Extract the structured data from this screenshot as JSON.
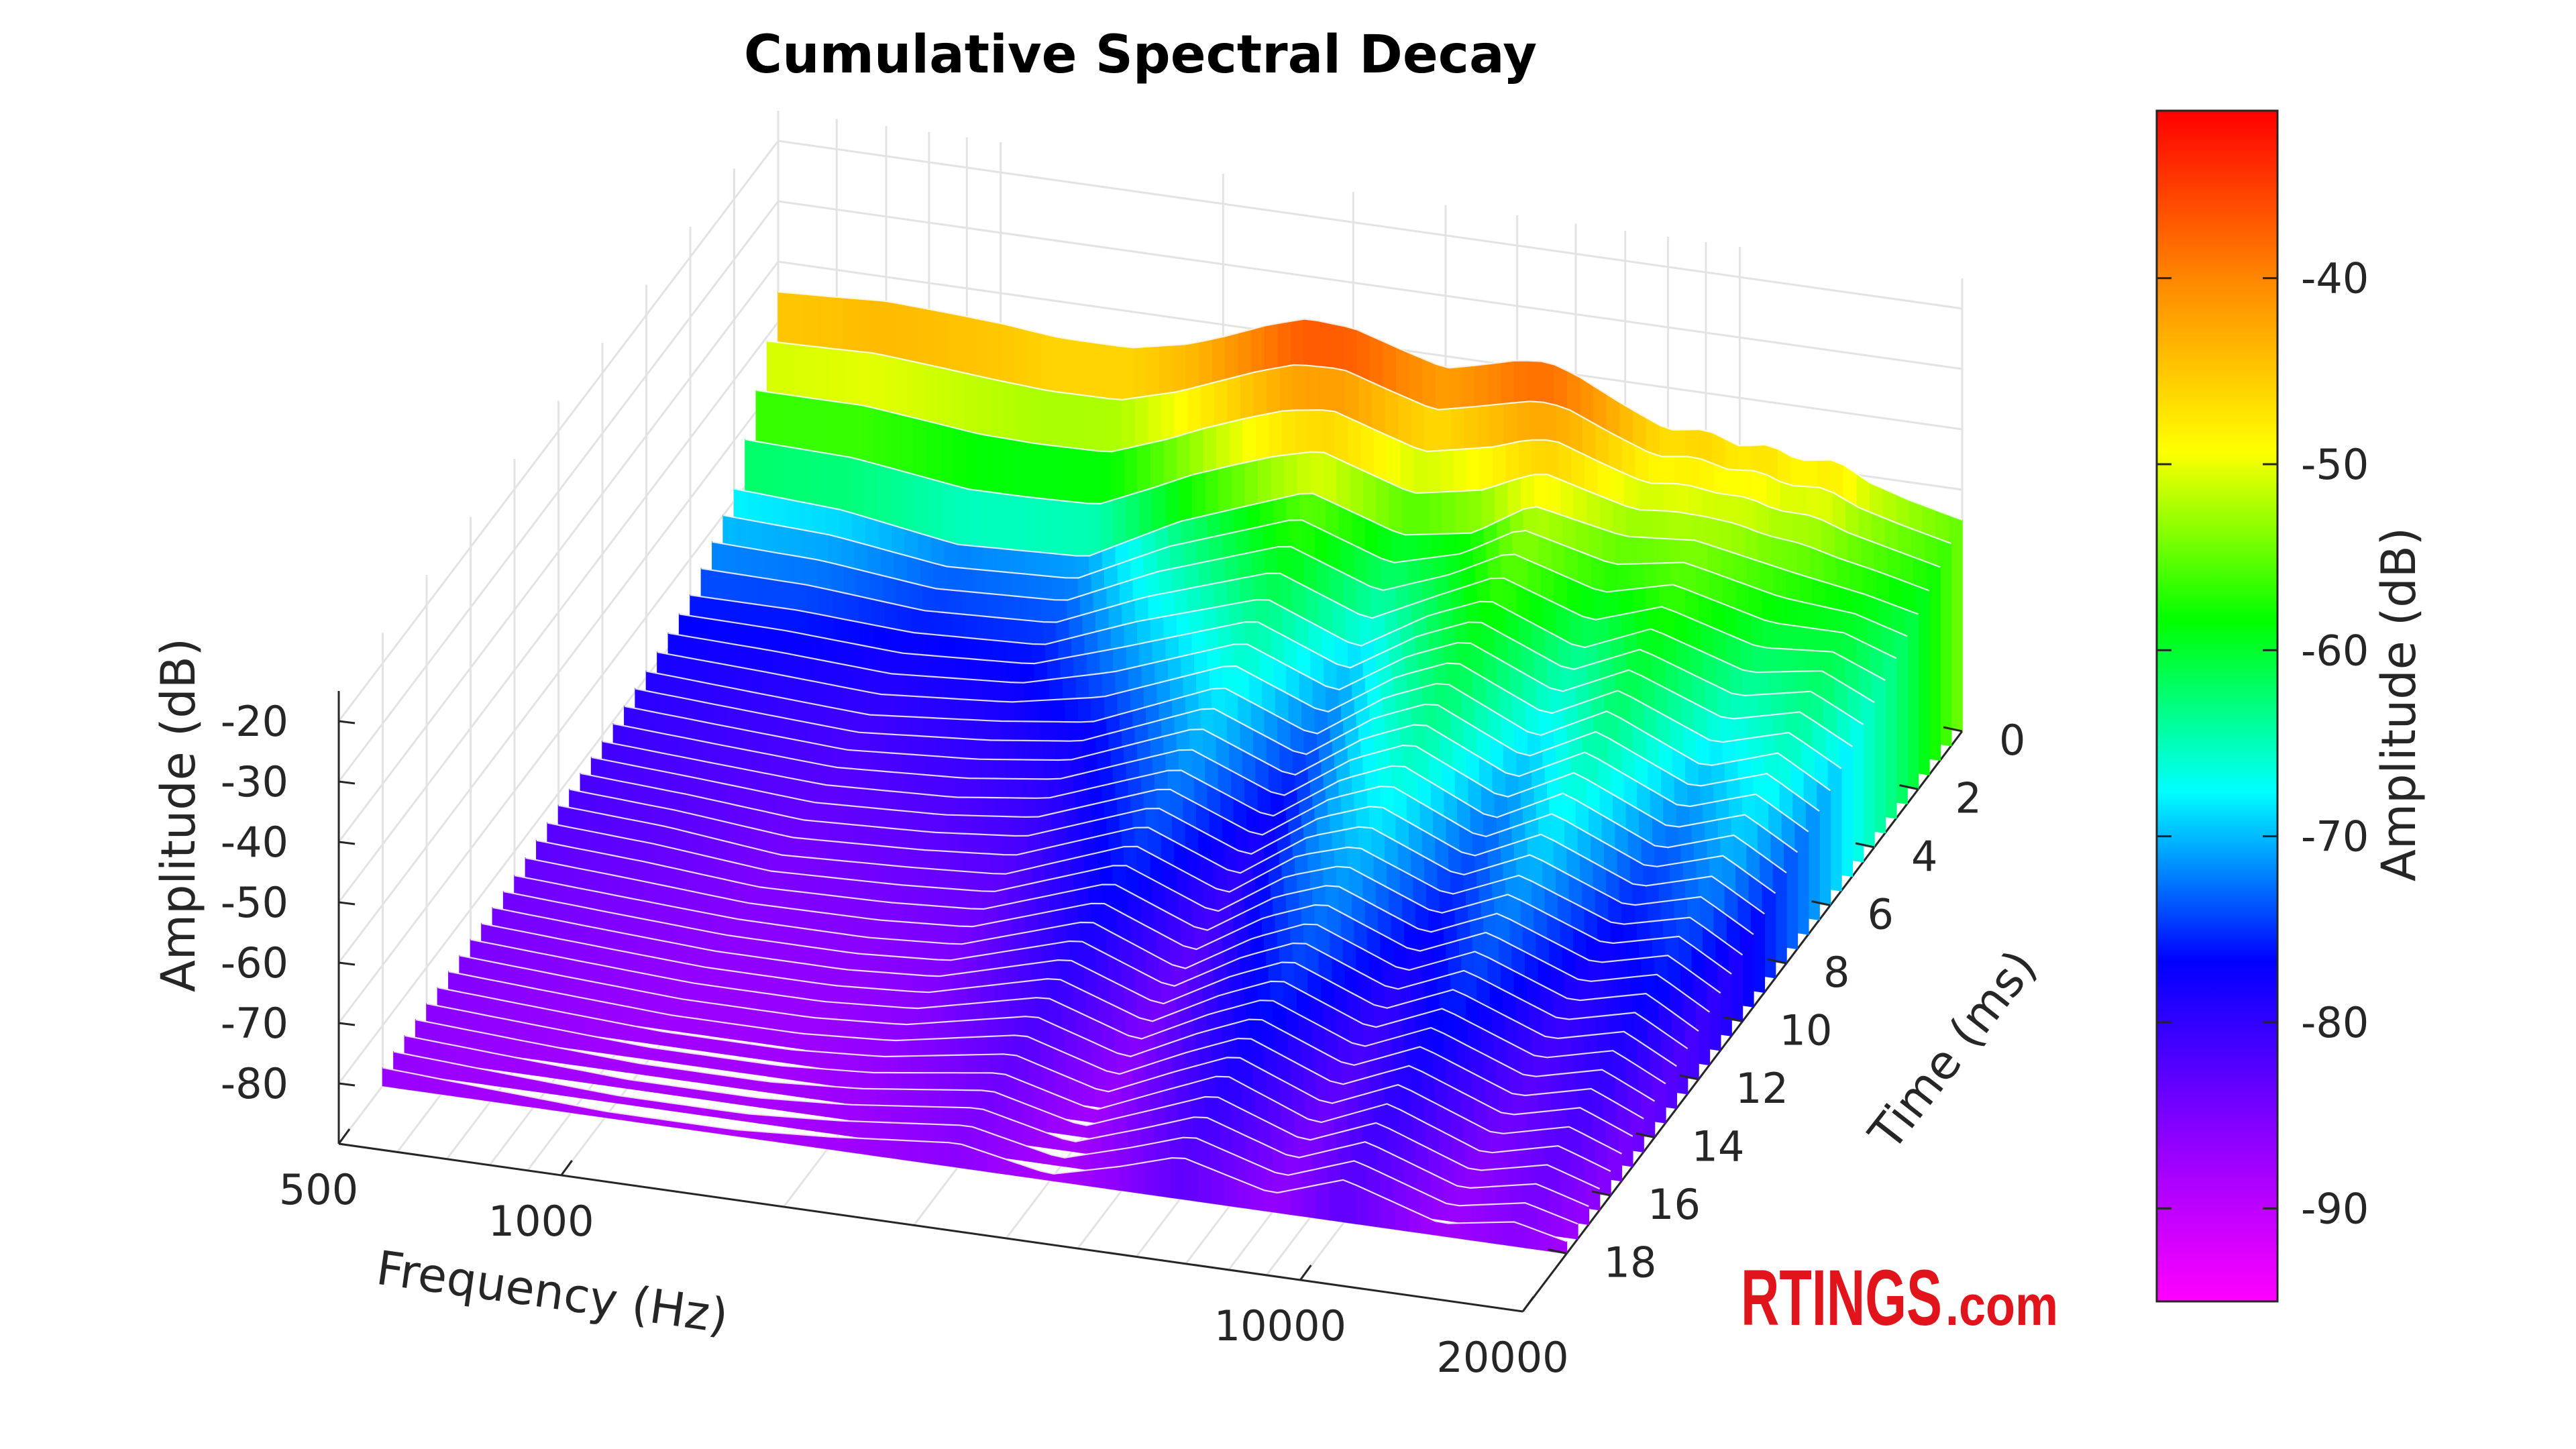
{
  "chart_data": {
    "type": "surface-3d",
    "title": "Cumulative Spectral Decay",
    "frequency_axis": {
      "label": "Frequency (Hz)",
      "scale": "log",
      "range": [
        500,
        20000
      ],
      "ticks": [
        "500",
        "1000",
        "10000",
        "20000"
      ]
    },
    "time_axis": {
      "label": "Time (ms)",
      "range": [
        0,
        20
      ],
      "ticks": [
        "0",
        "2",
        "4",
        "6",
        "8",
        "10",
        "12",
        "14",
        "16",
        "18"
      ]
    },
    "amplitude_axis": {
      "label": "Amplitude (dB)",
      "range": [
        -90,
        -15
      ],
      "ticks": [
        "-20",
        "-30",
        "-40",
        "-50",
        "-60",
        "-70",
        "-80"
      ]
    },
    "colorbar": {
      "label": "Amplitude (dB)",
      "range": [
        -95,
        -31
      ],
      "ticks": [
        "-40",
        "-50",
        "-60",
        "-70",
        "-80",
        "-90"
      ],
      "colormap": [
        "#ff00ff",
        "#8800ff",
        "#0000ff",
        "#00ffff",
        "#00ff00",
        "#ffff00",
        "#ff8800",
        "#ff0000"
      ]
    },
    "grid": true,
    "series": [
      {
        "time_ms": 0,
        "frequency_hz": [
          500,
          600,
          700,
          850,
          1000,
          1200,
          1500,
          1800,
          2000,
          2300,
          2600,
          3000,
          3500,
          4000,
          4500,
          5000,
          5500,
          6000,
          7000,
          8000,
          9000,
          10000,
          11000,
          12000,
          13500,
          15000,
          17000,
          20000
        ],
        "amplitude_db": [
          -45,
          -44.5,
          -44,
          -44.5,
          -45,
          -46,
          -46,
          -44,
          -42,
          -39,
          -37,
          -37.5,
          -40,
          -42,
          -40.5,
          -39,
          -38.5,
          -40,
          -44,
          -47,
          -46,
          -48,
          -47,
          -49,
          -48,
          -51,
          -53,
          -55
        ]
      },
      {
        "time_ms": 2,
        "frequency_hz": [
          500,
          700,
          1000,
          1500,
          2000,
          3000,
          4000,
          5000,
          6000,
          8000,
          10000,
          13500,
          17000,
          20000
        ],
        "amplitude_db": [
          -68,
          -69,
          -72,
          -71,
          -63,
          -55,
          -60,
          -58,
          -52,
          -55,
          -54,
          -57,
          -59,
          -61
        ]
      },
      {
        "time_ms": 4,
        "frequency_hz": [
          500,
          700,
          1000,
          1500,
          2000,
          3000,
          4000,
          5000,
          6000,
          8000,
          10000,
          13500,
          17000,
          20000
        ],
        "amplitude_db": [
          -76,
          -76,
          -77,
          -76,
          -70,
          -63,
          -69,
          -62,
          -58,
          -64,
          -59,
          -64,
          -62,
          -66
        ]
      },
      {
        "time_ms": 6,
        "frequency_hz": [
          500,
          700,
          1000,
          1500,
          2000,
          3000,
          4000,
          5000,
          6000,
          8000,
          10000,
          13500,
          17000,
          20000
        ],
        "amplitude_db": [
          -79,
          -80,
          -81,
          -79,
          -77,
          -68,
          -74,
          -66,
          -62,
          -69,
          -63,
          -70,
          -66,
          -71
        ]
      },
      {
        "time_ms": 8,
        "frequency_hz": [
          500,
          700,
          1000,
          1500,
          2000,
          3000,
          4000,
          5000,
          6000,
          8000,
          10000,
          13500,
          17000,
          20000
        ],
        "amplitude_db": [
          -81,
          -82,
          -83,
          -82,
          -80,
          -72,
          -78,
          -70,
          -66,
          -73,
          -67,
          -74,
          -70,
          -75
        ]
      },
      {
        "time_ms": 10,
        "frequency_hz": [
          500,
          700,
          1000,
          1500,
          2000,
          3000,
          4000,
          5000,
          6000,
          8000,
          10000,
          13500,
          17000,
          20000
        ],
        "amplitude_db": [
          -82,
          -83,
          -85,
          -84,
          -83,
          -75,
          -81,
          -73,
          -70,
          -76,
          -71,
          -77,
          -74,
          -79
        ]
      },
      {
        "time_ms": 12,
        "frequency_hz": [
          500,
          700,
          1000,
          1500,
          2000,
          3000,
          4000,
          5000,
          6000,
          8000,
          10000,
          13500,
          17000,
          20000
        ],
        "amplitude_db": [
          -84,
          -85,
          -86,
          -86,
          -85,
          -78,
          -84,
          -77,
          -73,
          -79,
          -74,
          -80,
          -77,
          -82
        ]
      },
      {
        "time_ms": 14,
        "frequency_hz": [
          500,
          700,
          1000,
          1500,
          2000,
          3000,
          4000,
          5000,
          6000,
          8000,
          10000,
          13500,
          17000,
          20000
        ],
        "amplitude_db": [
          -85,
          -86,
          -87,
          -87,
          -86,
          -81,
          -86,
          -80,
          -76,
          -82,
          -77,
          -83,
          -80,
          -84
        ]
      },
      {
        "time_ms": 16,
        "frequency_hz": [
          500,
          700,
          1000,
          1500,
          2000,
          3000,
          4000,
          5000,
          6000,
          8000,
          10000,
          13500,
          17000,
          20000
        ],
        "amplitude_db": [
          -86,
          -87,
          -88,
          -88,
          -87,
          -84,
          -88,
          -83,
          -79,
          -85,
          -80,
          -86,
          -83,
          -86
        ]
      },
      {
        "time_ms": 18,
        "frequency_hz": [
          500,
          700,
          1000,
          1500,
          2000,
          3000,
          4000,
          5000,
          6000,
          8000,
          10000,
          13500,
          17000,
          20000
        ],
        "amplitude_db": [
          -87,
          -88,
          -89,
          -89,
          -88,
          -86,
          -89,
          -86,
          -83,
          -87,
          -83,
          -88,
          -86,
          -88
        ]
      }
    ]
  },
  "brand": {
    "name": "RTINGS",
    "suffix": ".com"
  }
}
